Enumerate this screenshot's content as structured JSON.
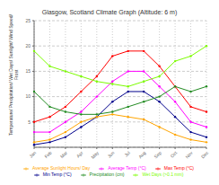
{
  "chart_data": {
    "type": "line",
    "title": "Glasgow, Scotland Climate Graph (Altitude: 6 m)",
    "ylabel": "Temperature/ Precipitation/ Wet Days/ Sunlight/ Wind Speed/\nFrost",
    "categories": [
      "Jan",
      "Feb",
      "Mar",
      "Apr",
      "May",
      "Jun",
      "Jul",
      "Aug",
      "Sep",
      "Oct",
      "Nov",
      "Dec"
    ],
    "series": [
      {
        "name": "Min Temp (°C)",
        "color": "#00008B",
        "values": [
          0.5,
          1,
          2,
          4,
          6,
          9,
          11,
          11,
          9,
          6,
          3,
          2
        ]
      },
      {
        "name": "Max Temp (°C)",
        "color": "#FF0000",
        "values": [
          5,
          6,
          8,
          11,
          14,
          18,
          19,
          19,
          16,
          12,
          8,
          7
        ]
      },
      {
        "name": "Average Temp (°C)",
        "color": "#FF00FF",
        "values": [
          3,
          3,
          5,
          7,
          10,
          13,
          15,
          15,
          12,
          9,
          5,
          4
        ]
      },
      {
        "name": "Precipitation (cm)",
        "color": "#228B22",
        "values": [
          11,
          8,
          7,
          6.5,
          6.5,
          7,
          8,
          9,
          10,
          12,
          11,
          12
        ]
      },
      {
        "name": "Wet Days (>0.1 mm)",
        "color": "#7CFC00",
        "values": [
          19,
          16,
          15,
          14,
          13,
          12.5,
          12,
          13,
          14,
          17,
          18,
          20
        ]
      },
      {
        "name": "Average Sunlight Hours/ Day",
        "color": "#FFA500",
        "values": [
          1,
          1.5,
          3,
          5,
          6,
          6.5,
          6,
          5.5,
          4,
          2.5,
          1.5,
          1
        ]
      }
    ],
    "ylim": [
      0,
      25
    ],
    "yticks": [
      5,
      10,
      15,
      20,
      25
    ],
    "grid": true,
    "legend": "bottom",
    "marker": "circle"
  }
}
